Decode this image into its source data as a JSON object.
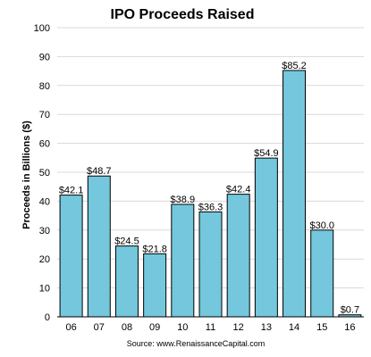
{
  "chart_data": {
    "type": "bar",
    "title": "IPO Proceeds Raised",
    "ylabel": "Proceeds in Billions ($)",
    "xlabel": "",
    "categories": [
      "06",
      "07",
      "08",
      "09",
      "10",
      "11",
      "12",
      "13",
      "14",
      "15",
      "16"
    ],
    "values": [
      42.1,
      48.7,
      24.5,
      21.8,
      38.9,
      36.3,
      42.4,
      54.9,
      85.2,
      30.0,
      0.7
    ],
    "data_labels": [
      "$42.1",
      "$48.7",
      "$24.5",
      "$21.8",
      "$38.9",
      "$36.3",
      "$42.4",
      "$54.9",
      "$85.2",
      "$30.0",
      "$0.7"
    ],
    "ylim": [
      0,
      100
    ],
    "yticks": [
      "0",
      "10",
      "20",
      "30",
      "40",
      "50",
      "60",
      "70",
      "80",
      "90",
      "100"
    ],
    "grid": true,
    "legend": "none",
    "bar_color": "#74C7DC",
    "source": "Source: www.RenaissanceCapital.com"
  }
}
